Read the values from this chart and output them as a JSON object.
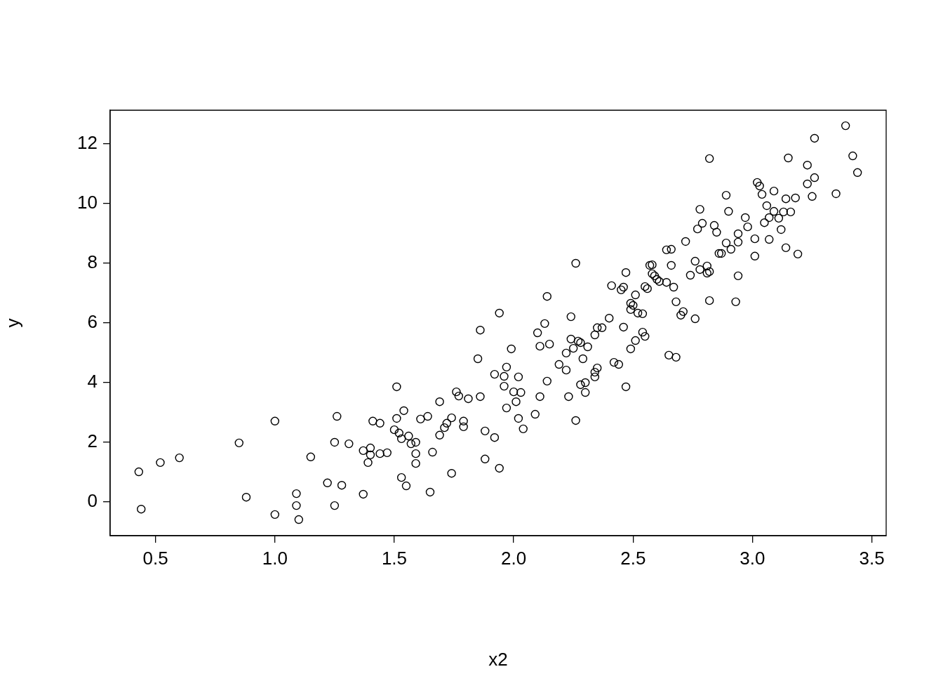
{
  "chart_data": {
    "type": "scatter",
    "xlabel": "x2",
    "ylabel": "y",
    "marker": "circle",
    "color": "#000000",
    "xlim": [
      0.31,
      3.56
    ],
    "ylim": [
      -1.13,
      13.13
    ],
    "xticks": [
      0.5,
      {
        "value": 1,
        "label": "1.0"
      },
      1.5,
      {
        "value": 2,
        "label": "2.0"
      },
      2.5,
      {
        "value": 3,
        "label": "3.0"
      },
      3.5
    ],
    "yticks": [
      0,
      2,
      4,
      6,
      8,
      10,
      12
    ],
    "x": [
      0.43,
      0.44,
      0.52,
      0.6,
      0.85,
      0.88,
      1.0,
      1.0,
      1.09,
      1.09,
      1.1,
      1.15,
      1.22,
      1.25,
      1.25,
      1.26,
      1.28,
      1.31,
      1.37,
      1.37,
      1.39,
      1.4,
      1.4,
      1.44,
      1.44,
      1.41,
      1.47,
      1.51,
      1.5,
      1.51,
      1.52,
      1.53,
      1.54,
      1.53,
      1.55,
      1.56,
      1.57,
      1.59,
      1.59,
      1.59,
      1.61,
      1.64,
      1.65,
      1.66,
      1.69,
      1.69,
      1.71,
      1.72,
      1.74,
      1.74,
      1.76,
      1.77,
      1.79,
      1.79,
      1.81,
      1.86,
      1.85,
      1.86,
      1.88,
      1.88,
      1.92,
      1.92,
      1.94,
      1.94,
      1.96,
      1.96,
      1.97,
      1.97,
      1.99,
      2.0,
      2.01,
      2.02,
      2.02,
      2.03,
      2.04,
      2.09,
      2.1,
      2.11,
      2.11,
      2.13,
      2.14,
      2.14,
      2.15,
      2.19,
      2.22,
      2.22,
      2.23,
      2.24,
      2.24,
      2.25,
      2.26,
      2.26,
      2.27,
      2.28,
      2.28,
      2.29,
      2.3,
      2.3,
      2.31,
      2.34,
      2.34,
      2.34,
      2.35,
      2.35,
      2.37,
      2.4,
      2.41,
      2.42,
      2.44,
      2.45,
      2.46,
      2.46,
      2.47,
      2.47,
      2.49,
      2.49,
      2.49,
      2.5,
      2.51,
      2.51,
      2.52,
      2.54,
      2.54,
      2.55,
      2.55,
      2.56,
      2.57,
      2.58,
      2.58,
      2.59,
      2.6,
      2.61,
      2.64,
      2.64,
      2.65,
      2.66,
      2.66,
      2.67,
      2.68,
      2.68,
      2.7,
      2.71,
      2.72,
      2.74,
      2.76,
      2.76,
      2.77,
      2.78,
      2.78,
      2.79,
      2.81,
      2.81,
      2.82,
      2.82,
      2.82,
      2.84,
      2.85,
      2.86,
      2.87,
      2.89,
      2.89,
      2.9,
      2.91,
      2.93,
      2.94,
      2.94,
      2.94,
      2.97,
      2.98,
      3.01,
      3.01,
      3.02,
      3.03,
      3.04,
      3.05,
      3.06,
      3.07,
      3.07,
      3.09,
      3.09,
      3.11,
      3.12,
      3.13,
      3.14,
      3.14,
      3.15,
      3.16,
      3.18,
      3.19,
      3.23,
      3.23,
      3.25,
      3.26,
      3.26,
      3.35,
      3.39,
      3.42,
      3.44
    ],
    "values": [
      1.01,
      -0.24,
      1.32,
      1.48,
      1.98,
      0.16,
      -0.42,
      2.71,
      0.28,
      -0.12,
      -0.59,
      1.51,
      0.64,
      2.0,
      -0.12,
      2.87,
      0.56,
      1.95,
      0.26,
      1.72,
      1.32,
      1.81,
      1.58,
      1.62,
      2.64,
      2.71,
      1.65,
      3.86,
      2.42,
      2.8,
      2.31,
      0.82,
      3.06,
      2.12,
      0.54,
      2.21,
      1.95,
      1.29,
      1.62,
      2.0,
      2.78,
      2.87,
      0.33,
      1.67,
      2.24,
      3.36,
      2.49,
      2.64,
      2.82,
      0.96,
      3.69,
      3.55,
      2.71,
      2.52,
      3.46,
      3.53,
      4.8,
      5.76,
      1.44,
      2.38,
      4.28,
      2.16,
      1.13,
      6.33,
      4.21,
      3.88,
      3.15,
      4.52,
      5.13,
      3.69,
      3.36,
      2.8,
      4.19,
      3.67,
      2.45,
      2.94,
      5.67,
      5.22,
      3.53,
      5.98,
      4.05,
      6.89,
      5.29,
      4.61,
      4.42,
      4.99,
      3.53,
      6.21,
      5.46,
      5.15,
      2.73,
      8.0,
      5.39,
      5.34,
      3.93,
      4.8,
      3.67,
      4.0,
      5.2,
      4.19,
      4.35,
      5.6,
      4.49,
      5.84,
      5.84,
      6.16,
      7.25,
      4.68,
      4.61,
      7.11,
      5.86,
      7.2,
      3.86,
      7.69,
      5.13,
      6.66,
      6.45,
      6.59,
      6.94,
      5.41,
      6.33,
      5.69,
      6.31,
      7.22,
      5.55,
      7.15,
      7.93,
      7.65,
      7.95,
      7.58,
      7.46,
      7.39,
      8.45,
      7.36,
      4.92,
      7.93,
      8.47,
      7.2,
      4.85,
      6.71,
      6.26,
      6.38,
      8.73,
      7.6,
      6.14,
      8.07,
      9.15,
      7.79,
      9.81,
      9.34,
      7.91,
      7.67,
      7.72,
      6.75,
      11.51,
      9.27,
      9.04,
      8.33,
      8.33,
      10.28,
      8.68,
      9.74,
      8.47,
      6.71,
      8.71,
      7.58,
      8.99,
      9.53,
      9.22,
      8.82,
      8.24,
      10.71,
      10.59,
      10.31,
      9.36,
      9.93,
      8.8,
      9.53,
      10.42,
      9.74,
      9.51,
      9.13,
      9.72,
      8.52,
      10.16,
      11.53,
      9.72,
      10.19,
      8.31,
      11.29,
      10.66,
      10.24,
      10.87,
      12.19,
      10.33,
      12.61,
      11.6,
      11.04
    ]
  }
}
